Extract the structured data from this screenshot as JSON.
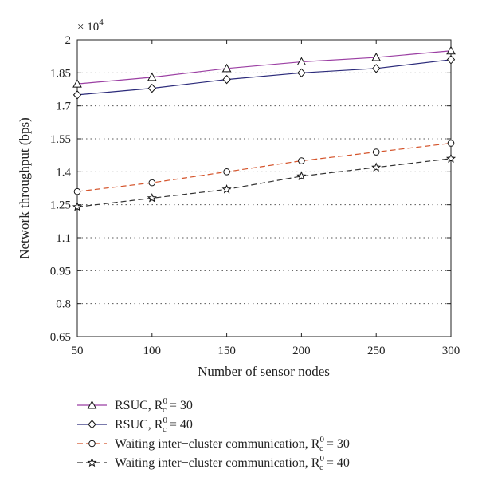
{
  "chart_data": {
    "type": "line",
    "multiplier_label": "× 10",
    "multiplier_exponent": "4",
    "xlabel": "Number of sensor nodes",
    "ylabel": "Network throughput (bps)",
    "x": [
      50,
      100,
      150,
      200,
      250,
      300
    ],
    "xlim": [
      50,
      300
    ],
    "ylim": [
      0.65,
      2.0
    ],
    "xticks": [
      "50",
      "100",
      "150",
      "200",
      "250",
      "300"
    ],
    "yticks": [
      {
        "v": 0.65,
        "label": "0.65"
      },
      {
        "v": 0.8,
        "label": "0.8"
      },
      {
        "v": 0.95,
        "label": "0.95"
      },
      {
        "v": 1.1,
        "label": "1.1"
      },
      {
        "v": 1.25,
        "label": "1.25"
      },
      {
        "v": 1.4,
        "label": "1.4"
      },
      {
        "v": 1.55,
        "label": "1.55"
      },
      {
        "v": 1.7,
        "label": "1.7"
      },
      {
        "v": 1.85,
        "label": "1.85"
      },
      {
        "v": 2.0,
        "label": "2"
      }
    ],
    "grid": "horizontal-dotted",
    "legend_position": "below",
    "series": [
      {
        "name": "RSUC",
        "param": "30",
        "values": [
          1.8,
          1.83,
          1.87,
          1.9,
          1.92,
          1.95
        ],
        "color": "#9b3fa3",
        "dash": "solid",
        "marker": "triangle"
      },
      {
        "name": "RSUC",
        "param": "40",
        "values": [
          1.75,
          1.78,
          1.82,
          1.85,
          1.87,
          1.91
        ],
        "color": "#2b2a7a",
        "dash": "solid",
        "marker": "diamond"
      },
      {
        "name": "Waiting inter−cluster communication",
        "param": "30",
        "values": [
          1.31,
          1.35,
          1.4,
          1.45,
          1.49,
          1.53
        ],
        "color": "#d4532a",
        "dash": "dashed",
        "marker": "circle"
      },
      {
        "name": "Waiting inter−cluster communication",
        "param": "40",
        "values": [
          1.24,
          1.28,
          1.32,
          1.38,
          1.42,
          1.46
        ],
        "color": "#333333",
        "dash": "dashed",
        "marker": "star"
      }
    ]
  }
}
